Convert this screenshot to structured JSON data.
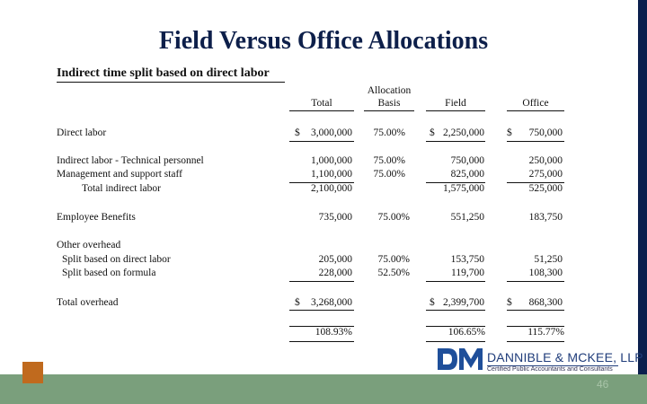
{
  "slide": {
    "title": "Field Versus Office Allocations",
    "subtitle": "Indirect time split based on direct labor",
    "page_number": "46"
  },
  "columns": {
    "total": "Total",
    "basis_line1": "Allocation",
    "basis_line2": "Basis",
    "field": "Field",
    "office": "Office"
  },
  "rows": {
    "direct_labor": {
      "label": "Direct labor",
      "total": "3,000,000",
      "basis": "75.00%",
      "field": "2,250,000",
      "office": "750,000"
    },
    "indirect_technical": {
      "label": "Indirect labor - Technical personnel",
      "total": "1,000,000",
      "basis": "75.00%",
      "field": "750,000",
      "office": "250,000"
    },
    "mgmt_support": {
      "label": "Management and support staff",
      "total": "1,100,000",
      "basis": "75.00%",
      "field": "825,000",
      "office": "275,000"
    },
    "total_indirect": {
      "label": "Total indirect labor",
      "total": "2,100,000",
      "field": "1,575,000",
      "office": "525,000"
    },
    "employee_benefits": {
      "label": "Employee Benefits",
      "total": "735,000",
      "basis": "75.00%",
      "field": "551,250",
      "office": "183,750"
    },
    "other_overhead": {
      "label": "Other overhead"
    },
    "split_direct": {
      "label": "Split based on direct labor",
      "total": "205,000",
      "basis": "75.00%",
      "field": "153,750",
      "office": "51,250"
    },
    "split_formula": {
      "label": "Split based on formula",
      "total": "228,000",
      "basis": "52.50%",
      "field": "119,700",
      "office": "108,300"
    },
    "total_overhead": {
      "label": "Total overhead",
      "total": "3,268,000",
      "field": "2,399,700",
      "office": "868,300"
    },
    "rates": {
      "total": "108.93%",
      "field": "106.65%",
      "office": "115.77%"
    }
  },
  "currency_symbol": "$",
  "logo": {
    "name": "DANNIBLE & MCKEE, LLP",
    "tagline": "Certified Public Accountants and Consultants"
  },
  "colors": {
    "title": "#0d1f4a",
    "footer_bar": "#7a9f7c",
    "accent_square": "#c06a1e",
    "right_bar": "#0b1f4d"
  }
}
